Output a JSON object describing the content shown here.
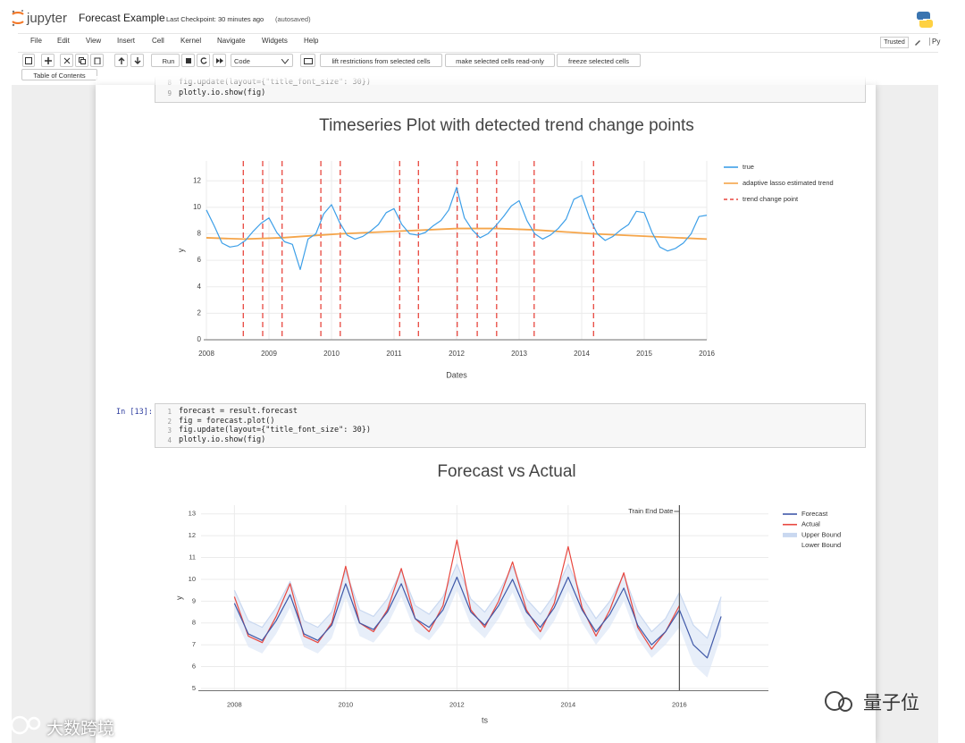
{
  "header": {
    "logo_text": "jupyter",
    "notebook_name": "Forecast Example",
    "checkpoint": "Last Checkpoint: 30 minutes ago",
    "autosave": "(autosaved)"
  },
  "menu": {
    "items": [
      "File",
      "Edit",
      "View",
      "Insert",
      "Cell",
      "Kernel",
      "Navigate",
      "Widgets",
      "Help"
    ],
    "trusted": "Trusted",
    "kernel": "Py"
  },
  "toolbar": {
    "run": "Run",
    "cell_type": "Code",
    "buttons": [
      "lift restrictions from selected cells",
      "make selected cells read-only",
      "freeze selected cells"
    ],
    "toc": "Table of Contents"
  },
  "cells": [
    {
      "line_numbers": [
        8,
        9
      ],
      "lines": [
        "fig.update(layout={\"title_font_size\": 30})",
        "plotly.io.show(fig)"
      ]
    },
    {
      "prompt": "In [13]:",
      "line_numbers": [
        1,
        2,
        3,
        4
      ],
      "lines": [
        "forecast = result.forecast",
        "fig = forecast.plot()",
        "fig.update(layout={\"title_font_size\": 30})",
        "plotly.io.show(fig)"
      ]
    }
  ],
  "chart_data": [
    {
      "type": "line",
      "title": "Timeseries Plot with detected trend change points",
      "x_label": "Dates",
      "y_label": "y",
      "xlim": [
        2008,
        2016
      ],
      "ylim": [
        0,
        13.5
      ],
      "xticks": [
        2008,
        2009,
        2010,
        2011,
        2012,
        2013,
        2014,
        2015,
        2016
      ],
      "yticks": [
        0,
        2,
        4,
        6,
        8,
        10,
        12
      ],
      "grid": true,
      "legend": "outside-right",
      "series": [
        {
          "name": "true",
          "color": "#3d9fe8",
          "mode": "lines",
          "x": [
            2008,
            2008.125,
            2008.25,
            2008.375,
            2008.5,
            2008.625,
            2008.75,
            2008.875,
            2009,
            2009.125,
            2009.25,
            2009.375,
            2009.5,
            2009.625,
            2009.75,
            2009.875,
            2010,
            2010.125,
            2010.25,
            2010.375,
            2010.5,
            2010.625,
            2010.75,
            2010.875,
            2011,
            2011.125,
            2011.25,
            2011.375,
            2011.5,
            2011.625,
            2011.75,
            2011.875,
            2012,
            2012.125,
            2012.25,
            2012.375,
            2012.5,
            2012.625,
            2012.75,
            2012.875,
            2013,
            2013.125,
            2013.25,
            2013.375,
            2013.5,
            2013.625,
            2013.75,
            2013.875,
            2014,
            2014.125,
            2014.25,
            2014.375,
            2014.5,
            2014.625,
            2014.75,
            2014.875,
            2015,
            2015.125,
            2015.25,
            2015.375,
            2015.5,
            2015.625,
            2015.75,
            2015.875,
            2016
          ],
          "values": [
            9.8,
            8.6,
            7.3,
            7.0,
            7.1,
            7.5,
            8.2,
            8.8,
            9.2,
            8.1,
            7.4,
            7.2,
            5.3,
            7.6,
            8.0,
            9.5,
            10.2,
            8.9,
            7.9,
            7.6,
            7.8,
            8.2,
            8.7,
            9.6,
            9.9,
            8.7,
            8.0,
            7.9,
            8.1,
            8.6,
            9.0,
            9.8,
            11.5,
            9.2,
            8.3,
            7.7,
            8.0,
            8.6,
            9.3,
            10.1,
            10.5,
            9.0,
            8.0,
            7.6,
            7.9,
            8.4,
            9.1,
            10.6,
            10.9,
            9.2,
            8.0,
            7.5,
            7.8,
            8.3,
            8.7,
            9.7,
            9.6,
            8.1,
            7.0,
            6.7,
            6.9,
            7.3,
            8.0,
            9.3,
            9.4
          ]
        },
        {
          "name": "adaptive lasso estimated trend",
          "color": "#f5a54a",
          "mode": "lines",
          "x": [
            2008,
            2008.59,
            2009.21,
            2009.83,
            2010.14,
            2011.09,
            2012.01,
            2012.64,
            2013.24,
            2014.19,
            2016
          ],
          "values": [
            7.7,
            7.6,
            7.7,
            7.9,
            8.0,
            8.2,
            8.4,
            8.4,
            8.3,
            8.0,
            7.6
          ]
        },
        {
          "name": "trend change point",
          "color": "#e8473f",
          "mode": "vlines",
          "x": [
            2008.59,
            2008.9,
            2009.21,
            2009.83,
            2010.14,
            2011.09,
            2011.39,
            2012.01,
            2012.33,
            2012.64,
            2013.24,
            2014.19
          ]
        }
      ]
    },
    {
      "type": "line",
      "title": "Forecast vs Actual",
      "x_label": "ts",
      "y_label": "y",
      "xlim": [
        2007.4,
        2017.6
      ],
      "ylim": [
        4.9,
        13.4
      ],
      "xticks": [
        2008,
        2010,
        2012,
        2014,
        2016
      ],
      "yticks": [
        5,
        6,
        7,
        8,
        9,
        10,
        11,
        12,
        13
      ],
      "grid": true,
      "legend": "outside-right",
      "annotations": [
        {
          "text": "Train End Date",
          "x": 2016
        }
      ],
      "series": [
        {
          "name": "Forecast",
          "color": "#4059a8",
          "mode": "lines",
          "x": [
            2008,
            2008.25,
            2008.5,
            2008.75,
            2009,
            2009.25,
            2009.5,
            2009.75,
            2010,
            2010.25,
            2010.5,
            2010.75,
            2011,
            2011.25,
            2011.5,
            2011.75,
            2012,
            2012.25,
            2012.5,
            2012.75,
            2013,
            2013.25,
            2013.5,
            2013.75,
            2014,
            2014.25,
            2014.5,
            2014.75,
            2015,
            2015.25,
            2015.5,
            2015.75,
            2016,
            2016.25,
            2016.5,
            2016.75
          ],
          "values": [
            8.9,
            7.5,
            7.2,
            8.1,
            9.3,
            7.5,
            7.2,
            7.9,
            9.8,
            8.0,
            7.7,
            8.5,
            9.8,
            8.2,
            7.8,
            8.6,
            10.1,
            8.5,
            7.9,
            8.8,
            10.0,
            8.5,
            7.8,
            8.7,
            10.1,
            8.6,
            7.6,
            8.4,
            9.6,
            7.9,
            7.0,
            7.6,
            8.6,
            7.0,
            6.4,
            8.3
          ]
        },
        {
          "name": "Actual",
          "color": "#e8473f",
          "mode": "lines",
          "x": [
            2008,
            2008.25,
            2008.5,
            2008.75,
            2009,
            2009.25,
            2009.5,
            2009.75,
            2010,
            2010.25,
            2010.5,
            2010.75,
            2011,
            2011.25,
            2011.5,
            2011.75,
            2012,
            2012.25,
            2012.5,
            2012.75,
            2013,
            2013.25,
            2013.5,
            2013.75,
            2014,
            2014.25,
            2014.5,
            2014.75,
            2015,
            2015.25,
            2015.5,
            2015.75,
            2016
          ],
          "values": [
            9.2,
            7.4,
            7.1,
            8.3,
            9.8,
            7.4,
            7.1,
            8.0,
            10.6,
            8.0,
            7.6,
            8.6,
            10.5,
            8.2,
            7.6,
            8.8,
            11.8,
            8.6,
            7.8,
            9.0,
            10.8,
            8.6,
            7.6,
            8.9,
            11.5,
            8.7,
            7.4,
            8.6,
            10.3,
            7.8,
            6.8,
            7.6,
            8.8
          ]
        },
        {
          "name": "Upper Bound",
          "color": "#c9d8f0",
          "mode": "lines",
          "x": [
            2008,
            2008.25,
            2008.5,
            2008.75,
            2009,
            2009.25,
            2009.5,
            2009.75,
            2010,
            2010.25,
            2010.5,
            2010.75,
            2011,
            2011.25,
            2011.5,
            2011.75,
            2012,
            2012.25,
            2012.5,
            2012.75,
            2013,
            2013.25,
            2013.5,
            2013.75,
            2014,
            2014.25,
            2014.5,
            2014.75,
            2015,
            2015.25,
            2015.5,
            2015.75,
            2016,
            2016.25,
            2016.5,
            2016.75
          ],
          "values": [
            9.5,
            8.1,
            7.8,
            8.7,
            9.9,
            8.1,
            7.8,
            8.5,
            10.4,
            8.6,
            8.3,
            9.1,
            10.4,
            8.8,
            8.4,
            9.2,
            10.7,
            9.1,
            8.5,
            9.4,
            10.6,
            9.1,
            8.4,
            9.3,
            10.7,
            9.2,
            8.2,
            9.0,
            10.2,
            8.5,
            7.6,
            8.2,
            9.4,
            7.9,
            7.3,
            9.2
          ]
        },
        {
          "name": "Lower Bound",
          "color": "#dde7f6",
          "mode": "lines",
          "fill": "tonexty",
          "x": [
            2008,
            2008.25,
            2008.5,
            2008.75,
            2009,
            2009.25,
            2009.5,
            2009.75,
            2010,
            2010.25,
            2010.5,
            2010.75,
            2011,
            2011.25,
            2011.5,
            2011.75,
            2012,
            2012.25,
            2012.5,
            2012.75,
            2013,
            2013.25,
            2013.5,
            2013.75,
            2014,
            2014.25,
            2014.5,
            2014.75,
            2015,
            2015.25,
            2015.5,
            2015.75,
            2016,
            2016.25,
            2016.5,
            2016.75
          ],
          "values": [
            8.3,
            6.9,
            6.6,
            7.5,
            8.7,
            6.9,
            6.6,
            7.3,
            9.2,
            7.4,
            7.1,
            7.9,
            9.2,
            7.6,
            7.2,
            8.0,
            9.5,
            7.9,
            7.3,
            8.2,
            9.4,
            7.9,
            7.2,
            8.1,
            9.5,
            8.0,
            7.0,
            7.8,
            9.0,
            7.3,
            6.4,
            7.0,
            7.8,
            6.1,
            5.5,
            7.4
          ]
        }
      ]
    }
  ],
  "watermarks": [
    "大数跨境",
    "量子位"
  ]
}
